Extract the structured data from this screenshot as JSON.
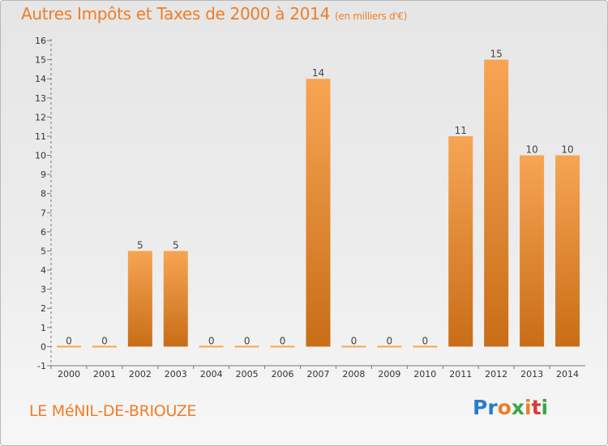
{
  "header": {
    "title": "Autres Impôts et Taxes de 2000 à 2014",
    "unit": "(en milliers d'€)"
  },
  "footer": {
    "town": "LE MéNIL-DE-BRIOUZE",
    "logo": [
      "P",
      "r",
      "o",
      "x",
      "i",
      "t",
      "i"
    ]
  },
  "colors": {
    "accent": "#ef7d28",
    "bar_light": "#f7a553",
    "bar_dark": "#c96d17",
    "logo": [
      "#2b7cc7",
      "#2b7cc7",
      "#ef7d28",
      "#37a845",
      "#ef7d28",
      "#d63b3b",
      "#37a845"
    ]
  },
  "chart_data": {
    "type": "bar",
    "title": "Autres Impôts et Taxes de 2000 à 2014",
    "xlabel": "",
    "ylabel": "",
    "categories": [
      "2000",
      "2001",
      "2002",
      "2003",
      "2004",
      "2005",
      "2006",
      "2007",
      "2008",
      "2009",
      "2010",
      "2011",
      "2012",
      "2013",
      "2014"
    ],
    "values": [
      0,
      0,
      5,
      5,
      0,
      0,
      0,
      14,
      0,
      0,
      0,
      11,
      15,
      10,
      10
    ],
    "value_labels": [
      "0",
      "0",
      "5",
      "5",
      "0",
      "0",
      "0",
      "14",
      "0",
      "0",
      "0",
      "11",
      "15",
      "10",
      "10"
    ],
    "yticks": [
      -1,
      0,
      1,
      2,
      3,
      4,
      5,
      6,
      7,
      8,
      9,
      10,
      11,
      12,
      13,
      14,
      15,
      16
    ],
    "ylim": [
      -1,
      16
    ],
    "grid": false
  }
}
